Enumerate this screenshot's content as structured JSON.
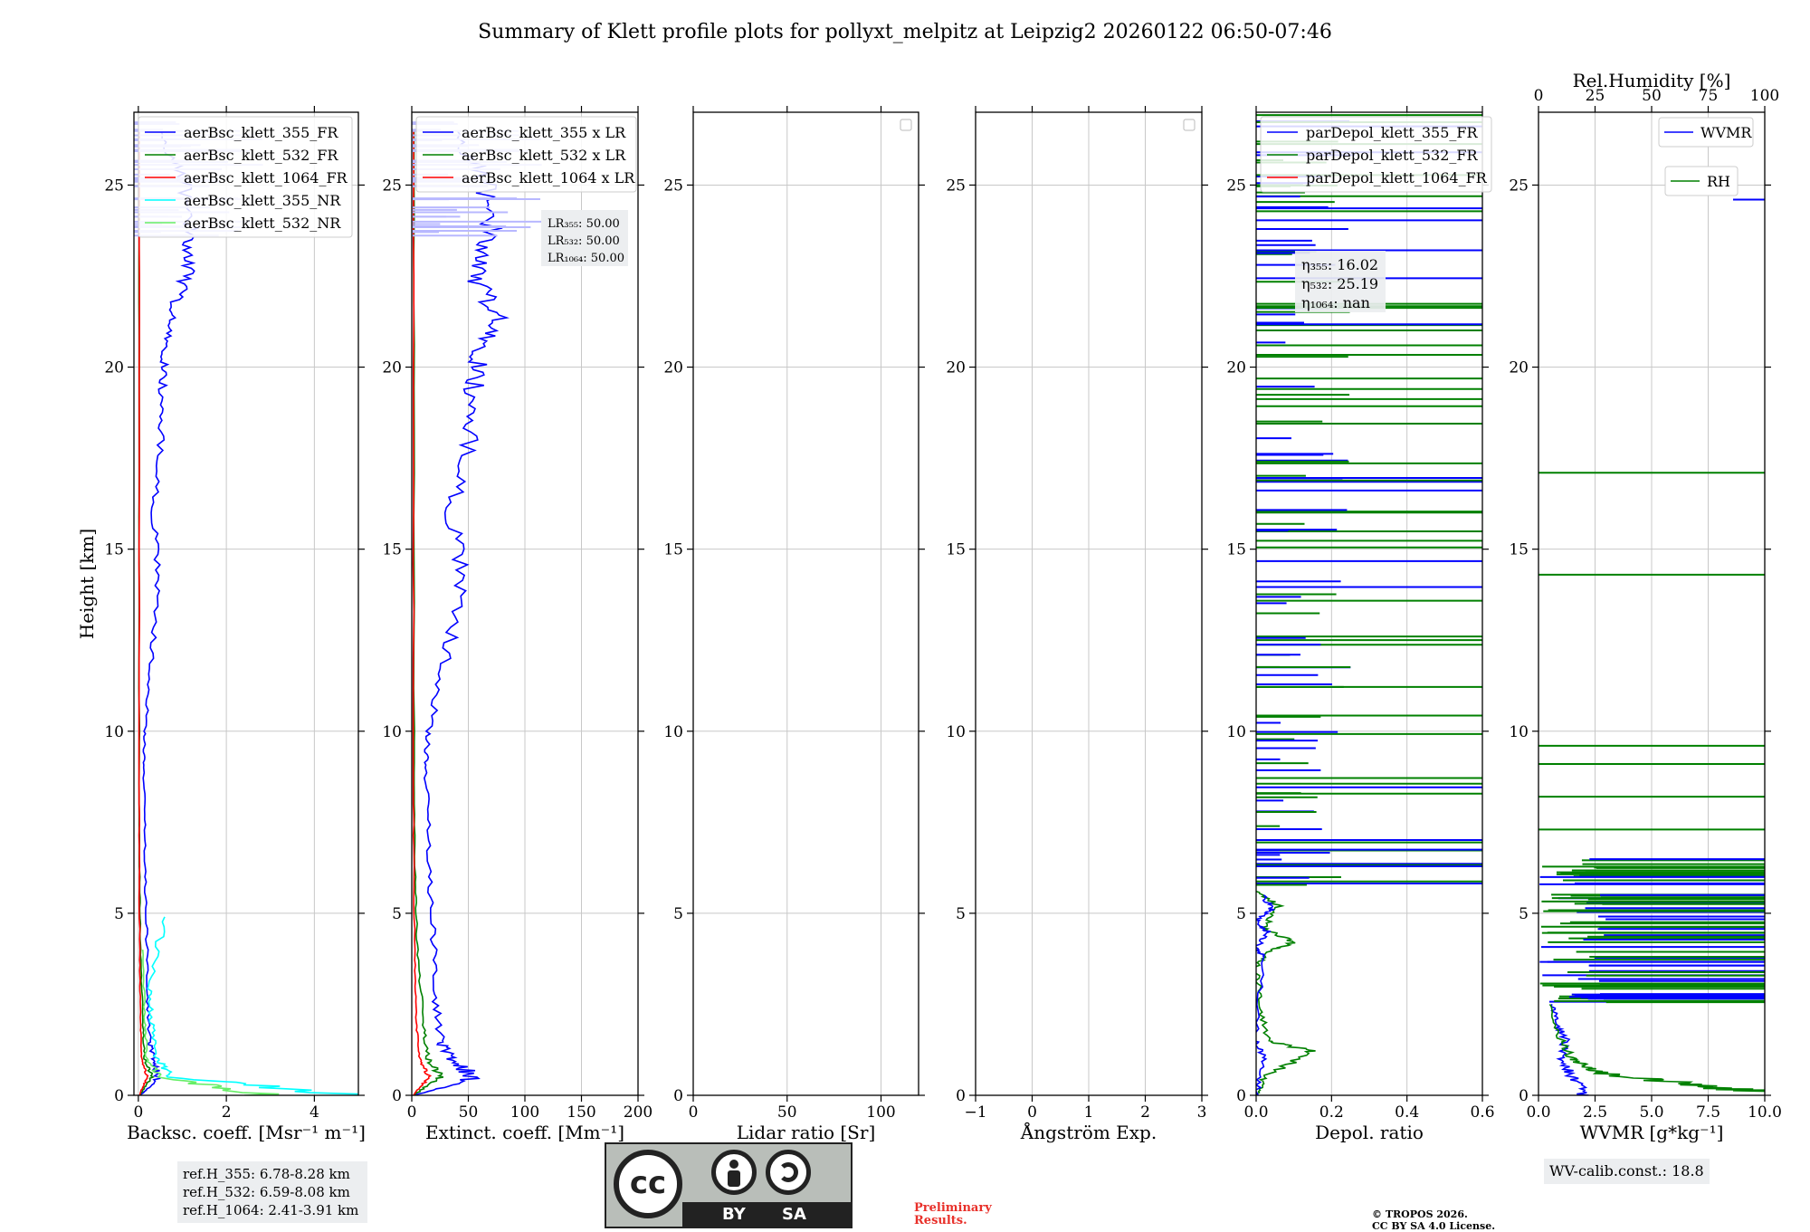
{
  "title": "Summary of Klett profile plots for pollyxt_melpitz at Leipzig2 20260122 06:50-07:46",
  "colors": {
    "b355": "#0000ff",
    "g532": "#008000",
    "r1064": "#ff0000",
    "nr355": "#00ffff",
    "nr532": "#66ee66",
    "grid": "#c8c8c8"
  },
  "ylabel": "Height [km]",
  "chart_data": [
    {
      "type": "line",
      "id": "bsc",
      "xlabel": "Backsc. coeff. [Msr⁻¹ m⁻¹]",
      "xlim": [
        -0.1,
        5
      ],
      "xticks": [
        "0",
        "2",
        "4"
      ],
      "xtick_values": [
        0,
        2,
        4
      ],
      "ylim": [
        0,
        27
      ],
      "yticks": [
        "0",
        "5",
        "10",
        "15",
        "20",
        "25"
      ],
      "legend": [
        "aerBsc_klett_355_FR",
        "aerBsc_klett_532_FR",
        "aerBsc_klett_1064_FR",
        "aerBsc_klett_355_NR",
        "aerBsc_klett_532_NR"
      ],
      "series": [
        {
          "name": "aerBsc_klett_355_FR",
          "color": "b355",
          "scale": 1,
          "x": [
            0.05,
            0.45,
            0.35,
            0.25,
            0.2,
            0.18,
            0.15,
            0.12,
            0.15,
            0.3,
            0.45,
            0.35,
            0.5,
            0.55,
            0.6,
            0.75,
            1.1,
            1.2,
            1.05,
            0.5
          ],
          "y": [
            0,
            0.5,
            1.0,
            1.5,
            3,
            5,
            7,
            9,
            10,
            12,
            14,
            16,
            18,
            19.5,
            20.5,
            21.5,
            22.5,
            23.5,
            25,
            26.5
          ]
        },
        {
          "name": "aerBsc_klett_532_FR",
          "color": "g532",
          "scale": 1,
          "x": [
            0.03,
            0.3,
            0.15,
            0.1,
            0.05,
            0.03,
            0.02,
            0.02
          ],
          "y": [
            0,
            0.5,
            1.0,
            2,
            4,
            6,
            10,
            26.5
          ]
        },
        {
          "name": "aerBsc_klett_1064_FR",
          "color": "r1064",
          "scale": 1,
          "x": [
            0.02,
            0.2,
            0.08,
            0.05,
            0.03,
            0.02,
            0.02
          ],
          "y": [
            0,
            0.5,
            1.0,
            2,
            4,
            8,
            26.5
          ]
        },
        {
          "name": "aerBsc_klett_355_NR",
          "color": "nr355",
          "scale": 1,
          "x": [
            4.9,
            0.8,
            0.4,
            0.3,
            0.25,
            0.6
          ],
          "y": [
            0,
            0.5,
            1.0,
            2,
            3,
            4.9
          ]
        },
        {
          "name": "aerBsc_klett_532_NR",
          "color": "nr532",
          "scale": 1,
          "x": [
            2.9,
            0.5,
            0.2,
            0.15,
            0.1
          ],
          "y": [
            0,
            0.5,
            1.0,
            2,
            4
          ]
        }
      ],
      "box_lines": [
        "ref.H_355: 6.78-8.28 km",
        "ref.H_532: 6.59-8.08 km",
        "ref.H_1064: 2.41-3.91 km"
      ]
    },
    {
      "type": "line",
      "id": "ext",
      "xlabel": "Extinct. coeff. [Mm⁻¹]",
      "xlim": [
        0,
        200
      ],
      "xticks": [
        "0",
        "50",
        "100",
        "150",
        "200"
      ],
      "xtick_values": [
        0,
        50,
        100,
        150,
        200
      ],
      "ylim": [
        0,
        27
      ],
      "yticks": [
        "0",
        "5",
        "10",
        "15",
        "20",
        "25"
      ],
      "legend": [
        "aerBsc_klett_355 x LR",
        "aerBsc_klett_532 x LR",
        "aerBsc_klett_1064 x LR"
      ],
      "series": [
        {
          "name": "aerBsc_klett_355 x LR",
          "color": "b355",
          "scale": 50,
          "x": [
            0.05,
            1.1,
            0.7,
            0.5,
            0.4,
            0.36,
            0.3,
            0.24,
            0.3,
            0.6,
            0.9,
            0.7,
            1.0,
            1.1,
            1.2,
            1.5,
            1.1,
            1.4,
            1.3,
            0.8
          ],
          "y": [
            0,
            0.5,
            1.0,
            1.5,
            3,
            5,
            7,
            9,
            10,
            12,
            14,
            16,
            18,
            19.5,
            20.5,
            21.5,
            22.5,
            23.5,
            25,
            26.5
          ]
        },
        {
          "name": "aerBsc_klett_532 x LR",
          "color": "g532",
          "scale": 50,
          "x": [
            0.03,
            0.5,
            0.3,
            0.2,
            0.1,
            0.06,
            0.04,
            0.04
          ],
          "y": [
            0,
            0.5,
            1.0,
            2,
            4,
            6,
            10,
            26.5
          ]
        },
        {
          "name": "aerBsc_klett_1064 x LR",
          "color": "r1064",
          "scale": 50,
          "x": [
            0.02,
            0.3,
            0.15,
            0.08,
            0.05,
            0.03,
            0.03
          ],
          "y": [
            0,
            0.5,
            1.0,
            2,
            4,
            8,
            26.5
          ]
        }
      ],
      "lr_lines": [
        "LR₃₅₅: 50.00",
        "LR₅₃₂: 50.00",
        "LR₁₀₆₄: 50.00"
      ]
    },
    {
      "type": "line",
      "id": "lr",
      "xlabel": "Lidar ratio [Sr]",
      "xlim": [
        0,
        120
      ],
      "xticks": [
        "0",
        "50",
        "100"
      ],
      "xtick_values": [
        0,
        50,
        100
      ],
      "ylim": [
        0,
        27
      ],
      "yticks": [
        "0",
        "5",
        "10",
        "15",
        "20",
        "25"
      ],
      "series": []
    },
    {
      "type": "line",
      "id": "ang",
      "xlabel": "Ångström Exp.",
      "xlim": [
        -1,
        3
      ],
      "xticks": [
        "−1",
        "0",
        "1",
        "2",
        "3"
      ],
      "xtick_values": [
        -1,
        0,
        1,
        2,
        3
      ],
      "ylim": [
        0,
        27
      ],
      "yticks": [
        "0",
        "5",
        "10",
        "15",
        "20",
        "25"
      ],
      "series": []
    },
    {
      "type": "line",
      "id": "dep",
      "xlabel": "Depol. ratio",
      "xlim": [
        0,
        0.6
      ],
      "xticks": [
        "0.0",
        "0.2",
        "0.4",
        "0.6"
      ],
      "xtick_values": [
        0,
        0.2,
        0.4,
        0.6
      ],
      "ylim": [
        0,
        27
      ],
      "yticks": [
        "0",
        "5",
        "10",
        "15",
        "20",
        "25"
      ],
      "legend": [
        "parDepol_klett_355_FR",
        "parDepol_klett_532_FR",
        "parDepol_klett_1064_FR"
      ],
      "series": [
        {
          "name": "parDepol_klett_532_FR",
          "color": "g532",
          "scale": 1,
          "x": [
            0.0,
            0.02,
            0.15,
            0.03,
            0.01,
            0.0,
            0.04,
            0.1,
            0.02,
            0.06,
            0.0
          ],
          "y": [
            0,
            0.5,
            1.2,
            1.5,
            2.5,
            3.5,
            4.0,
            4.2,
            4.6,
            5.2,
            5.6
          ]
        },
        {
          "name": "parDepol_klett_355_FR",
          "color": "b355",
          "scale": 1,
          "x": [
            0.0,
            0.02,
            0.0,
            0.02,
            0.0,
            0.03,
            0.0,
            0.04,
            0.02
          ],
          "y": [
            0,
            1.0,
            1.5,
            3.8,
            4.0,
            4.5,
            4.8,
            5.1,
            5.5
          ]
        }
      ],
      "eta_lines": [
        "η₃₅₅: 16.02",
        "η₅₃₂: 25.19",
        "η₁₀₆₄: nan"
      ]
    },
    {
      "type": "line",
      "id": "wv",
      "xlabel": "WVMR [g*kg⁻¹]",
      "xlim": [
        0,
        10
      ],
      "xticks": [
        "0.0",
        "2.5",
        "5.0",
        "7.5",
        "10.0"
      ],
      "xtick_values": [
        0,
        2.5,
        5,
        7.5,
        10
      ],
      "top_label": "Rel.Humidity [%]",
      "top_ticks": [
        "0",
        "25",
        "50",
        "75",
        "100"
      ],
      "ylim": [
        0,
        27
      ],
      "yticks": [
        "0",
        "5",
        "10",
        "15",
        "20",
        "25"
      ],
      "legend": [
        "WVMR",
        "RH"
      ],
      "series": [
        {
          "name": "WVMR",
          "color": "b355",
          "scale": 1,
          "x": [
            2.0,
            1.5,
            1.0,
            1.2,
            0.8,
            0.6
          ],
          "y": [
            0,
            0.5,
            1.0,
            1.5,
            2.0,
            2.5
          ]
        },
        {
          "name": "RH",
          "color": "g532",
          "scale": 1,
          "x": [
            10.0,
            6.5,
            3.0,
            2.0,
            1.5,
            1.0,
            0.5
          ],
          "y": [
            0.1,
            0.3,
            0.6,
            0.8,
            1.0,
            1.5,
            2.5
          ]
        }
      ],
      "calib": "WV-calib.const.: 18.8"
    }
  ],
  "license": {
    "cc": "cc",
    "by": "BY",
    "sa": "SA"
  },
  "preliminary": [
    "Preliminary",
    "Results."
  ],
  "copyright": [
    "© TROPOS 2026.",
    "CC BY SA 4.0 License."
  ]
}
